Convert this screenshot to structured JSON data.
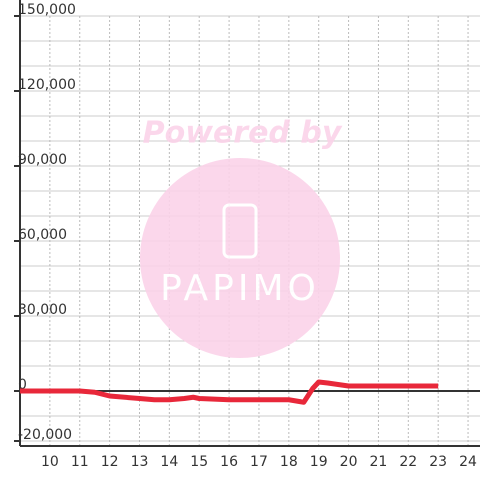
{
  "chart_data": {
    "type": "line",
    "watermark": "Powered by",
    "watermark_logo": "PAPIMO",
    "x": [
      9,
      10,
      11,
      11.5,
      12,
      13,
      13.5,
      14,
      14.5,
      14.8,
      15,
      16,
      17,
      18,
      18.5,
      18.8,
      19,
      19.3,
      20,
      21,
      22,
      23
    ],
    "series": [
      {
        "color": "#e8283a",
        "values": [
          0,
          0,
          0,
          -500,
          -2000,
          -3000,
          -3500,
          -3500,
          -3000,
          -2500,
          -3000,
          -3500,
          -3500,
          -3500,
          -4500,
          1000,
          3600,
          3200,
          2000,
          2000,
          2000,
          2000
        ]
      }
    ],
    "xlim": [
      9,
      24.4
    ],
    "xticks": [
      10,
      11,
      12,
      13,
      14,
      15,
      16,
      17,
      18,
      19,
      20,
      21,
      22,
      23,
      24
    ],
    "ylim": [
      -22000,
      150000
    ],
    "yticks": [
      {
        "value": -20000,
        "label": "-20,000"
      },
      {
        "value": 0,
        "label": "0"
      },
      {
        "value": 30000,
        "label": "30,000"
      },
      {
        "value": 60000,
        "label": "60,000"
      },
      {
        "value": 90000,
        "label": "90,000"
      },
      {
        "value": 120000,
        "label": "120,000"
      },
      {
        "value": 150000,
        "label": "150,000"
      }
    ],
    "ygrid": [
      -20000,
      -10000,
      0,
      10000,
      20000,
      30000,
      40000,
      50000,
      60000,
      70000,
      80000,
      90000,
      100000,
      110000,
      120000,
      130000,
      140000,
      150000
    ],
    "grid": true
  }
}
